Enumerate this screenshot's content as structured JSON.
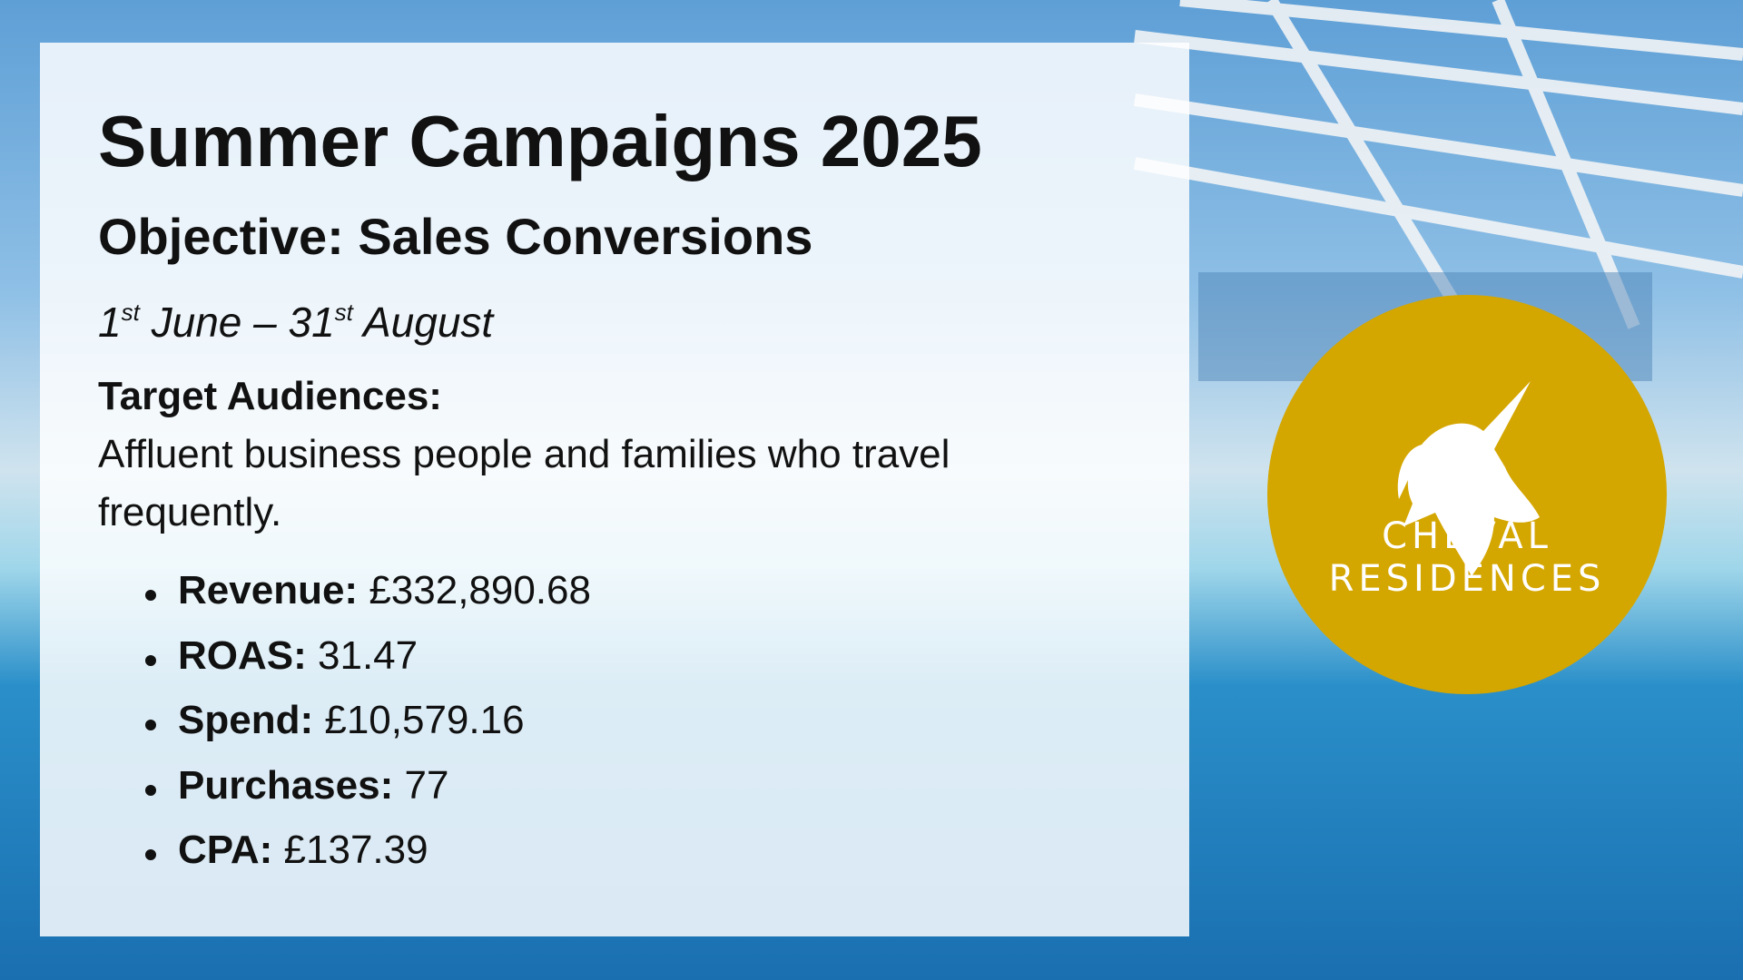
{
  "header": {
    "title": "Summer Campaigns 2025",
    "subtitle": "Objective: Sales Conversions",
    "date_parts": [
      "1",
      "st",
      " June – 31",
      "st",
      " August"
    ]
  },
  "audiences": {
    "heading": "Target Audiences:",
    "lines": [
      "Affluent business people and families who travel",
      "frequently."
    ]
  },
  "metrics": [
    {
      "label": "Revenue:",
      "value": "£332,890.68"
    },
    {
      "label": "ROAS:",
      "value": "31.47"
    },
    {
      "label": "Spend:",
      "value": "£10,579.16"
    },
    {
      "label": "Purchases:",
      "value": "77"
    },
    {
      "label": "CPA:",
      "value": "£137.39"
    }
  ],
  "logo": {
    "line1": "CHEVAL",
    "line2": "RESIDENCES"
  }
}
